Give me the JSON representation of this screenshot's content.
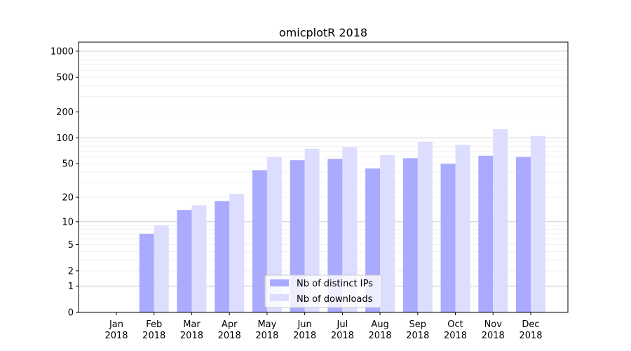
{
  "chart_data": {
    "type": "bar",
    "title": "omicplotR 2018",
    "xlabel": "",
    "ylabel": "",
    "yscale": "symlog",
    "ylim": [
      0,
      1270
    ],
    "grid": "y, major and minor",
    "legend_position": "lower-center",
    "categories": [
      "Jan\n2018",
      "Feb\n2018",
      "Mar\n2018",
      "Apr\n2018",
      "May\n2018",
      "Jun\n2018",
      "Jul\n2018",
      "Aug\n2018",
      "Sep\n2018",
      "Oct\n2018",
      "Nov\n2018",
      "Dec\n2018"
    ],
    "yticks": [
      0,
      1,
      2,
      5,
      10,
      20,
      50,
      100,
      200,
      500,
      1000
    ],
    "series": [
      {
        "name": "Nb of distinct IPs",
        "color": "#aaaaff",
        "values": [
          0,
          7,
          14,
          18,
          42,
          55,
          57,
          44,
          58,
          50,
          62,
          60
        ]
      },
      {
        "name": "Nb of downloads",
        "color": "#ddddff",
        "values": [
          0,
          9,
          16,
          22,
          60,
          75,
          78,
          63,
          90,
          83,
          126,
          105
        ]
      }
    ]
  }
}
